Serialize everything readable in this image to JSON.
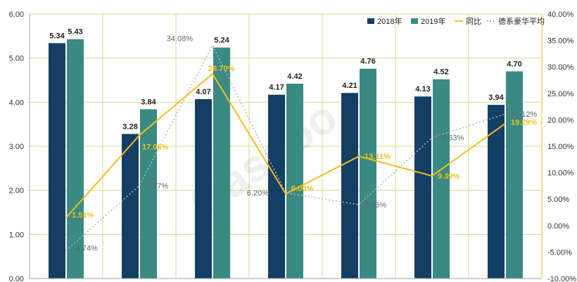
{
  "chart_data": {
    "type": "bar",
    "title": "",
    "categories": [
      "",
      "",
      "",
      "",
      "",
      "",
      ""
    ],
    "series": [
      {
        "name": "2018年",
        "values": [
          5.34,
          3.28,
          4.07,
          4.17,
          4.21,
          4.13,
          3.94
        ],
        "color": "#123f63"
      },
      {
        "name": "2019年",
        "values": [
          5.43,
          3.84,
          5.24,
          4.42,
          4.76,
          4.52,
          4.7
        ],
        "color": "#3a8a83"
      }
    ],
    "yoy": {
      "name": "同比",
      "values": [
        1.51,
        17.06,
        28.7,
        6.0,
        13.11,
        9.39,
        19.29
      ],
      "labels": [
        "1.51%",
        "17.06%",
        "28.70%",
        "6.00%",
        "13.11%",
        "9.39%",
        "19.29%"
      ],
      "color": "#f2be1d"
    },
    "avg": {
      "name": "德系豪华平均",
      "values": [
        -4.74,
        7.57,
        34.08,
        6.2,
        3.96,
        16.63,
        21.12
      ],
      "labels": [
        "-4.74%",
        "7.57%",
        "34.08%",
        "6.20%",
        "3.96%",
        "16.63%",
        "21.12%"
      ],
      "color": "#b5b5b5"
    },
    "bar_labels": [
      [
        "5.34",
        "3.28",
        "4.07",
        "4.17",
        "4.21",
        "4.13",
        "3.94"
      ],
      [
        "5.43",
        "3.84",
        "5.24",
        "4.42",
        "4.76",
        "4.52",
        "4.70"
      ]
    ],
    "ylim": [
      0,
      6
    ],
    "y2lim": [
      -10,
      40
    ],
    "yticks": [
      "0.00",
      "1.00",
      "2.00",
      "3.00",
      "4.00",
      "5.00",
      "6.00"
    ],
    "y2ticks": [
      "-10.00%",
      "-5.00%",
      "0.00%",
      "5.00%",
      "10.00%",
      "15.00%",
      "20.00%",
      "25.00%",
      "30.00%",
      "35.00%",
      "40.00%"
    ],
    "grid": true,
    "legend": "top-right",
    "watermark": "Gasgoo"
  }
}
